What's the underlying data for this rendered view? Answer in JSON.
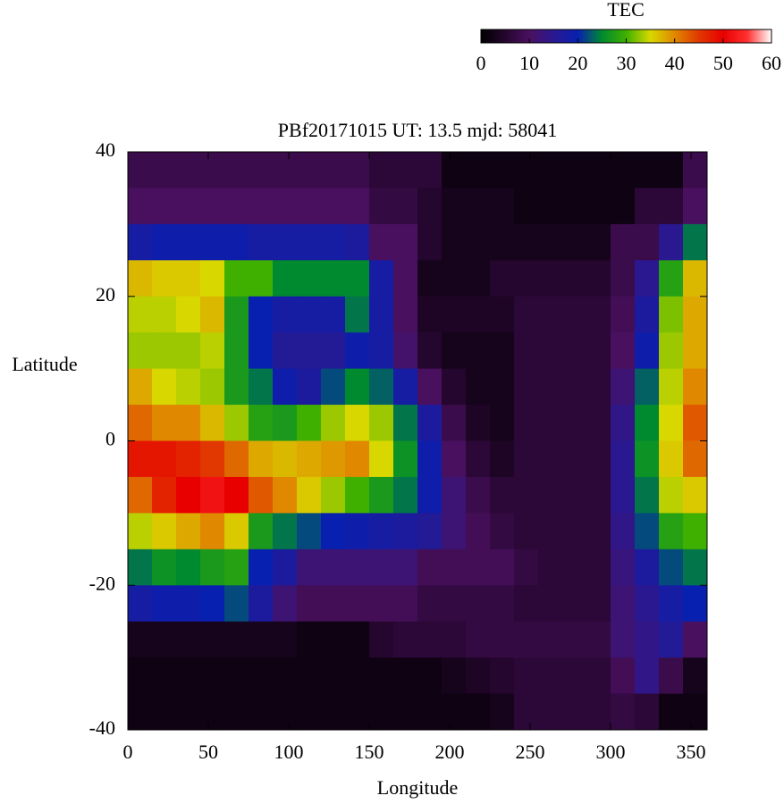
{
  "chart_data": {
    "type": "heatmap",
    "title": "PBf20171015  UT: 13.5  mjd: 58041",
    "xlabel": "Longitude",
    "ylabel": "Latitude",
    "colorbar_label": "TEC",
    "xlim": [
      0,
      360
    ],
    "xticks": [
      0,
      50,
      100,
      150,
      200,
      250,
      300,
      350
    ],
    "ylim": [
      -40,
      40
    ],
    "yticks": [
      -40,
      -20,
      0,
      20,
      40
    ],
    "zlim": [
      0,
      60
    ],
    "zticks": [
      0,
      10,
      20,
      30,
      40,
      50,
      60
    ],
    "colormap": [
      "#000000",
      "#25062e",
      "#4a1060",
      "#2a1890",
      "#0820b0",
      "#008a30",
      "#40b000",
      "#d8d800",
      "#e08800",
      "#e03800",
      "#e80000",
      "#ff3030",
      "#ffffff"
    ],
    "x": [
      7.5,
      22.5,
      37.5,
      52.5,
      67.5,
      82.5,
      97.5,
      112.5,
      127.5,
      142.5,
      157.5,
      172.5,
      187.5,
      202.5,
      217.5,
      232.5,
      247.5,
      262.5,
      277.5,
      292.5,
      307.5,
      322.5,
      337.5,
      352.5
    ],
    "y": [
      37.5,
      32.5,
      27.5,
      22.5,
      17.5,
      12.5,
      7.5,
      2.5,
      -2.5,
      -7.5,
      -12.5,
      -17.5,
      -22.5,
      -27.5,
      -32.5,
      -37.5
    ],
    "values": [
      [
        8,
        8,
        8,
        8,
        8,
        8,
        8,
        8,
        8,
        8,
        6,
        6,
        6,
        2,
        2,
        2,
        2,
        2,
        2,
        2,
        2,
        2,
        2,
        8
      ],
      [
        10,
        10,
        10,
        10,
        10,
        10,
        10,
        10,
        10,
        10,
        7,
        7,
        5,
        3,
        3,
        3,
        2,
        2,
        2,
        2,
        2,
        6,
        6,
        10
      ],
      [
        18,
        19,
        19,
        19,
        19,
        18,
        18,
        18,
        18,
        17,
        10,
        10,
        5,
        3,
        3,
        3,
        3,
        3,
        3,
        3,
        8,
        8,
        15,
        24
      ],
      [
        37,
        36,
        36,
        35,
        30,
        30,
        25,
        25,
        25,
        25,
        18,
        10,
        3,
        3,
        3,
        5,
        5,
        5,
        5,
        5,
        8,
        15,
        28,
        37
      ],
      [
        34,
        34,
        35,
        37,
        27,
        20,
        18,
        18,
        18,
        24,
        18,
        10,
        4,
        4,
        4,
        4,
        6,
        6,
        6,
        6,
        9,
        17,
        32,
        38
      ],
      [
        33,
        33,
        33,
        34,
        27,
        20,
        16,
        16,
        16,
        19,
        18,
        11,
        5,
        3,
        3,
        3,
        6,
        6,
        6,
        6,
        10,
        19,
        33,
        38
      ],
      [
        38,
        35,
        34,
        33,
        27,
        24,
        19,
        17,
        22,
        25,
        23,
        18,
        10,
        5,
        3,
        3,
        6,
        6,
        6,
        6,
        12,
        23,
        34,
        40
      ],
      [
        42,
        40,
        40,
        37,
        33,
        28,
        27,
        30,
        33,
        35,
        33,
        24,
        17,
        8,
        4,
        3,
        6,
        6,
        6,
        6,
        14,
        25,
        35,
        43
      ],
      [
        48,
        48,
        47,
        45,
        42,
        38,
        37,
        38,
        39,
        40,
        35,
        26,
        19,
        10,
        6,
        4,
        6,
        6,
        6,
        6,
        15,
        26,
        36,
        42
      ],
      [
        42,
        47,
        50,
        52,
        50,
        43,
        40,
        36,
        33,
        30,
        27,
        24,
        19,
        12,
        8,
        6,
        6,
        6,
        6,
        6,
        15,
        24,
        34,
        36
      ],
      [
        34,
        36,
        38,
        40,
        36,
        27,
        24,
        22,
        20,
        19,
        18,
        17,
        16,
        12,
        9,
        7,
        6,
        6,
        6,
        6,
        14,
        22,
        28,
        30
      ],
      [
        24,
        26,
        25,
        27,
        28,
        20,
        17,
        12,
        12,
        12,
        12,
        12,
        9,
        9,
        9,
        9,
        7,
        6,
        6,
        6,
        13,
        17,
        22,
        24
      ],
      [
        18,
        19,
        19,
        20,
        22,
        17,
        12,
        9,
        9,
        9,
        9,
        9,
        7,
        7,
        7,
        7,
        6,
        6,
        6,
        6,
        12,
        15,
        18,
        20
      ],
      [
        3,
        3,
        3,
        3,
        3,
        3,
        3,
        2,
        2,
        2,
        5,
        6,
        6,
        6,
        7,
        7,
        7,
        7,
        7,
        7,
        12,
        14,
        16,
        10
      ],
      [
        2,
        2,
        2,
        2,
        2,
        2,
        2,
        2,
        2,
        2,
        2,
        2,
        2,
        3,
        4,
        5,
        6,
        6,
        6,
        6,
        9,
        14,
        8,
        3
      ],
      [
        2,
        2,
        2,
        2,
        2,
        2,
        2,
        2,
        2,
        2,
        2,
        2,
        2,
        2,
        2,
        3,
        6,
        6,
        6,
        6,
        7,
        6,
        2,
        2
      ]
    ]
  }
}
